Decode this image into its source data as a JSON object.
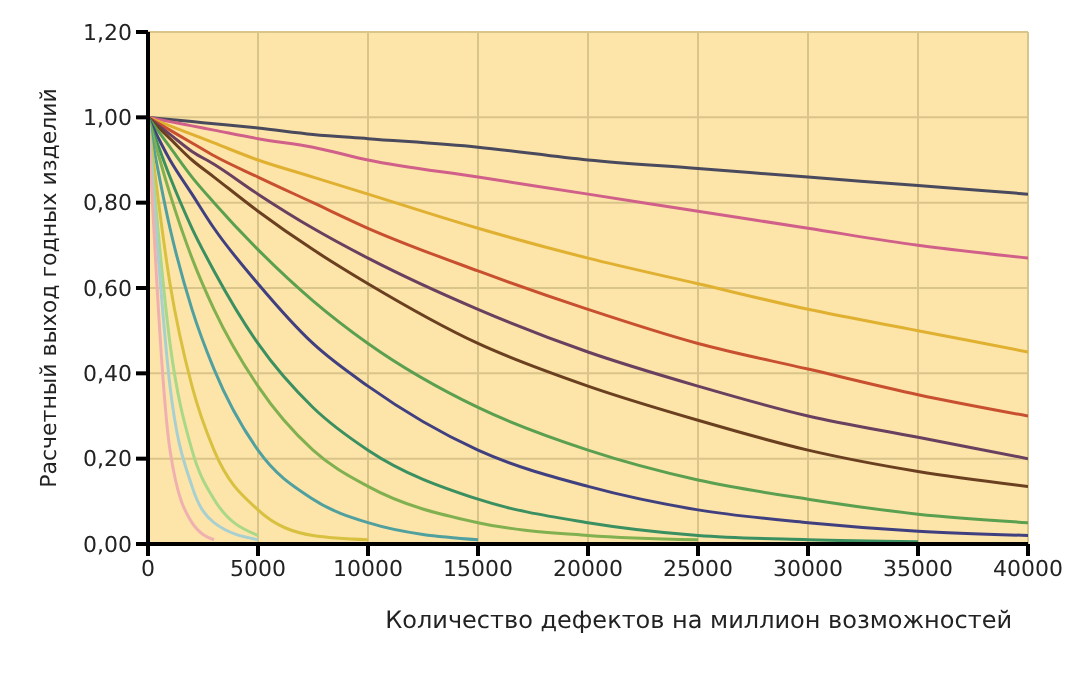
{
  "chart_data": {
    "type": "line",
    "xlabel": "Количество дефектов на миллион возможностей",
    "ylabel": "Расчетный выход годных изделий",
    "x": [
      0,
      1000,
      2000,
      3000,
      5000,
      7500,
      10000,
      15000,
      20000,
      25000,
      30000,
      35000,
      40000
    ],
    "series": [
      {
        "color": "#4a4a5e",
        "values": [
          1,
          0.995,
          0.99,
          0.985,
          0.975,
          0.96,
          0.95,
          0.93,
          0.9,
          0.88,
          0.86,
          0.84,
          0.82
        ]
      },
      {
        "color": "#d0608a",
        "values": [
          1,
          0.99,
          0.98,
          0.97,
          0.95,
          0.93,
          0.9,
          0.86,
          0.82,
          0.78,
          0.74,
          0.7,
          0.67
        ]
      },
      {
        "color": "#e0b030",
        "values": [
          1,
          0.98,
          0.96,
          0.94,
          0.9,
          0.86,
          0.82,
          0.74,
          0.67,
          0.61,
          0.55,
          0.5,
          0.45
        ]
      },
      {
        "color": "#c85030",
        "values": [
          1,
          0.97,
          0.94,
          0.91,
          0.86,
          0.8,
          0.74,
          0.64,
          0.55,
          0.47,
          0.41,
          0.35,
          0.3
        ]
      },
      {
        "color": "#6a4060",
        "values": [
          1,
          0.96,
          0.92,
          0.89,
          0.82,
          0.74,
          0.67,
          0.55,
          0.45,
          0.37,
          0.3,
          0.25,
          0.2
        ]
      },
      {
        "color": "#6a4020",
        "values": [
          1,
          0.95,
          0.9,
          0.86,
          0.78,
          0.69,
          0.61,
          0.47,
          0.37,
          0.29,
          0.22,
          0.17,
          0.135
        ]
      },
      {
        "color": "#5aa050",
        "values": [
          1,
          0.93,
          0.86,
          0.8,
          0.69,
          0.57,
          0.47,
          0.32,
          0.22,
          0.15,
          0.105,
          0.07,
          0.05
        ]
      },
      {
        "color": "#404080",
        "values": [
          1,
          0.9,
          0.82,
          0.74,
          0.61,
          0.47,
          0.37,
          0.22,
          0.135,
          0.08,
          0.05,
          0.03,
          0.02
        ]
      },
      {
        "color": "#3a9060",
        "values": [
          1,
          0.86,
          0.74,
          0.64,
          0.47,
          0.32,
          0.22,
          0.105,
          0.05,
          0.02,
          0.01,
          0.005,
          null
        ]
      },
      {
        "color": "#80b050",
        "values": [
          1,
          0.82,
          0.67,
          0.55,
          0.37,
          0.22,
          0.135,
          0.05,
          0.02,
          0.01,
          null,
          null,
          null
        ]
      },
      {
        "color": "#50a0a0",
        "values": [
          1,
          0.74,
          0.55,
          0.41,
          0.22,
          0.105,
          0.05,
          0.01,
          null,
          null,
          null,
          null,
          null
        ]
      },
      {
        "color": "#d8c040",
        "values": [
          1,
          0.61,
          0.37,
          0.22,
          0.08,
          0.02,
          0.01,
          null,
          null,
          null,
          null,
          null,
          null
        ]
      },
      {
        "color": "#a8d888",
        "values": [
          1,
          0.47,
          0.22,
          0.105,
          0.02,
          null,
          null,
          null,
          null,
          null,
          null,
          null,
          null
        ]
      },
      {
        "color": "#a8d0d0",
        "values": [
          1,
          0.37,
          0.135,
          0.05,
          0.01,
          null,
          null,
          null,
          null,
          null,
          null,
          null,
          null
        ]
      },
      {
        "color": "#f0b0b0",
        "values": [
          1,
          0.22,
          0.05,
          0.01,
          null,
          null,
          null,
          null,
          null,
          null,
          null,
          null,
          null
        ]
      }
    ],
    "xlim": [
      0,
      40000
    ],
    "xticks": [
      0,
      5000,
      10000,
      15000,
      20000,
      25000,
      30000,
      35000,
      40000
    ],
    "ylim": [
      0,
      1.2
    ],
    "yticks": [
      {
        "value": 0,
        "label": "0,00"
      },
      {
        "value": 0.2,
        "label": "0,20"
      },
      {
        "value": 0.4,
        "label": "0,40"
      },
      {
        "value": 0.6,
        "label": "0,60"
      },
      {
        "value": 0.8,
        "label": "0,80"
      },
      {
        "value": 1,
        "label": "1,00"
      },
      {
        "value": 1.2,
        "label": "1,20"
      }
    ],
    "grid": true,
    "legend": false,
    "marker": "none",
    "line_style": "solid"
  }
}
